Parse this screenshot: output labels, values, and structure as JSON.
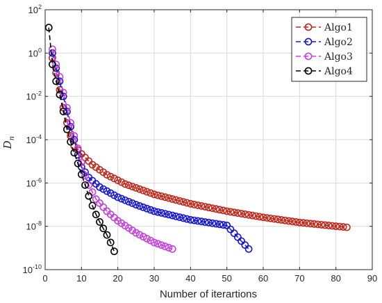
{
  "chart_data": {
    "type": "line",
    "xlabel": "Number of iterartions",
    "ylabel": "D",
    "ylabel_sub": "n",
    "x_ticks": [
      0,
      10,
      20,
      30,
      40,
      50,
      60,
      70,
      80,
      90
    ],
    "y_ticks": [
      {
        "value": 1e-10,
        "base": "10",
        "exp": "-10"
      },
      {
        "value": 1e-08,
        "base": "10",
        "exp": "-8"
      },
      {
        "value": 1e-06,
        "base": "10",
        "exp": "-6"
      },
      {
        "value": 0.0001,
        "base": "10",
        "exp": "-4"
      },
      {
        "value": 0.01,
        "base": "10",
        "exp": "-2"
      },
      {
        "value": 1,
        "base": "10",
        "exp": "0"
      },
      {
        "value": 100,
        "base": "10",
        "exp": "2"
      }
    ],
    "xlim": [
      0,
      90
    ],
    "ylim": [
      1e-10,
      100
    ],
    "yscale": "log",
    "grid": true,
    "legend_position": "top-right",
    "series": [
      {
        "name": "Algo1",
        "color": "#c0271a",
        "marker": "circle",
        "line": "dashed",
        "anchors": [
          [
            2,
            0.6
          ],
          [
            3,
            0.12
          ],
          [
            4,
            0.02
          ],
          [
            5,
            0.003
          ],
          [
            6,
            0.0006
          ],
          [
            7,
            0.00015
          ],
          [
            8,
            5e-05
          ],
          [
            10,
            2.2e-05
          ],
          [
            13,
            7e-06
          ],
          [
            17,
            2.4e-06
          ],
          [
            22,
            9e-07
          ],
          [
            30,
            3e-07
          ],
          [
            40,
            1.1e-07
          ],
          [
            50,
            5e-08
          ],
          [
            60,
            2.6e-08
          ],
          [
            70,
            1.5e-08
          ],
          [
            83,
            9e-09
          ]
        ],
        "x_end": 83
      },
      {
        "name": "Algo2",
        "color": "#1515d6",
        "marker": "circle",
        "line": "dashed",
        "anchors": [
          [
            2,
            1.0
          ],
          [
            3,
            0.2
          ],
          [
            4,
            0.05
          ],
          [
            5,
            0.01
          ],
          [
            6,
            0.002
          ],
          [
            7,
            0.0004
          ],
          [
            8,
            0.0001
          ],
          [
            9,
            2e-05
          ],
          [
            10,
            5.5e-06
          ],
          [
            12,
            1.8e-06
          ],
          [
            15,
            6.5e-07
          ],
          [
            20,
            2.2e-07
          ],
          [
            25,
            1e-07
          ],
          [
            30,
            5e-08
          ],
          [
            40,
            2e-08
          ],
          [
            50,
            1.1e-08
          ],
          [
            56,
            9e-10
          ]
        ],
        "x_end": 56
      },
      {
        "name": "Algo3",
        "color": "#c53fe0",
        "marker": "circle",
        "line": "dashed",
        "anchors": [
          [
            2,
            1.5
          ],
          [
            3,
            0.3
          ],
          [
            4,
            0.08
          ],
          [
            5,
            0.015
          ],
          [
            6,
            0.003
          ],
          [
            7,
            0.0006
          ],
          [
            8,
            0.00015
          ],
          [
            9,
            4e-05
          ],
          [
            10,
            9e-06
          ],
          [
            11,
            2.2e-06
          ],
          [
            12,
            8e-07
          ],
          [
            14,
            1.8e-07
          ],
          [
            17,
            5e-08
          ],
          [
            20,
            1.8e-08
          ],
          [
            25,
            5e-09
          ],
          [
            30,
            1.8e-09
          ],
          [
            35,
            9e-10
          ]
        ],
        "x_end": 35
      },
      {
        "name": "Algo4",
        "color": "#000000",
        "marker": "circle",
        "line": "dashed",
        "anchors": [
          [
            1,
            15
          ],
          [
            2,
            0.3
          ],
          [
            3,
            0.05
          ],
          [
            4,
            0.012
          ],
          [
            5,
            0.002
          ],
          [
            6,
            0.0003
          ],
          [
            7,
            8e-05
          ],
          [
            8,
            2.5e-05
          ],
          [
            9,
            8e-06
          ],
          [
            10,
            2.5e-06
          ],
          [
            11,
            8e-07
          ],
          [
            12,
            2.5e-07
          ],
          [
            13,
            9e-08
          ],
          [
            14,
            3.5e-08
          ],
          [
            15,
            1.6e-08
          ],
          [
            16,
            8e-09
          ],
          [
            17,
            4e-09
          ],
          [
            18,
            1.8e-09
          ],
          [
            19,
            7e-10
          ]
        ],
        "x_end": 19
      }
    ]
  }
}
